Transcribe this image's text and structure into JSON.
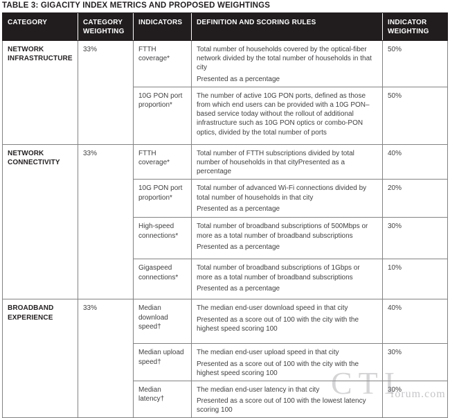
{
  "title": "TABLE 3: GIGACITY INDEX METRICS AND PROPOSED WEIGHTINGS",
  "watermark": {
    "big": "CTI",
    "small": "forum.com"
  },
  "colors": {
    "header_bg": "#211d1e",
    "header_text": "#ffffff",
    "body_text": "#3f3e40",
    "border": "#828282"
  },
  "chart_data": {
    "type": "table",
    "title": "TABLE 3: GIGACITY INDEX METRICS AND PROPOSED WEIGHTINGS",
    "headers": [
      "CATEGORY",
      "CATEGORY WEIGHTING",
      "INDICATORS",
      "DEFINITION AND SCORING RULES",
      "INDICATOR WEIGHTING"
    ],
    "sections": [
      {
        "category": "NETWORK INFRASTRUCTURE",
        "category_weighting": "33%",
        "indicators": [
          {
            "name": "FTTH coverage*",
            "definition": [
              "Total number of households covered by the optical-fiber network divided by the total number of households in that city",
              "Presented as a percentage"
            ],
            "indicator_weighting": "50%"
          },
          {
            "name": "10G PON port proportion*",
            "definition": [
              "The number of active 10G PON ports, defined as those from which end users can be provided with a 10G PON–based service today without the rollout of additional infrastructure such as 10G PON optics or combo-PON optics, divided by the total number of ports"
            ],
            "indicator_weighting": "50%"
          }
        ]
      },
      {
        "category": "NETWORK CONNECTIVITY",
        "category_weighting": "33%",
        "indicators": [
          {
            "name": "FTTH coverage*",
            "definition": [
              "Total number of FTTH subscriptions divided by total number of households in that cityPresented as a percentage"
            ],
            "indicator_weighting": "40%"
          },
          {
            "name": "10G PON port proportion*",
            "definition": [
              "Total number of advanced Wi-Fi connections divided by total number of households in that city",
              "Presented as a percentage"
            ],
            "indicator_weighting": "20%"
          },
          {
            "name": "High-speed connections*",
            "definition": [
              "Total number of broadband subscriptions of 500Mbps or more as a total number of broadband subscriptions",
              "Presented as a percentage"
            ],
            "indicator_weighting": "30%"
          },
          {
            "name": "Gigaspeed connections*",
            "definition": [
              "Total number of broadband subscriptions of 1Gbps or more as a total number of broadband subscriptions",
              "Presented as a percentage"
            ],
            "indicator_weighting": "10%"
          }
        ]
      },
      {
        "category": "BROADBAND EXPERIENCE",
        "category_weighting": "33%",
        "indicators": [
          {
            "name": "Median download speed†",
            "definition": [
              "The median end-user download speed in that city",
              "Presented as a score out of 100 with the city with the highest speed scoring 100"
            ],
            "indicator_weighting": "40%"
          },
          {
            "name": "Median upload speed†",
            "definition": [
              "The median end-user upload speed in that city",
              "Presented as a score out of 100 with the city with the highest speed scoring 100"
            ],
            "indicator_weighting": "30%"
          },
          {
            "name": "Median latency†",
            "definition": [
              "The median end-user latency in that city",
              "Presented as a score out of 100 with the lowest latency scoring 100"
            ],
            "indicator_weighting": "30%"
          }
        ]
      }
    ]
  }
}
